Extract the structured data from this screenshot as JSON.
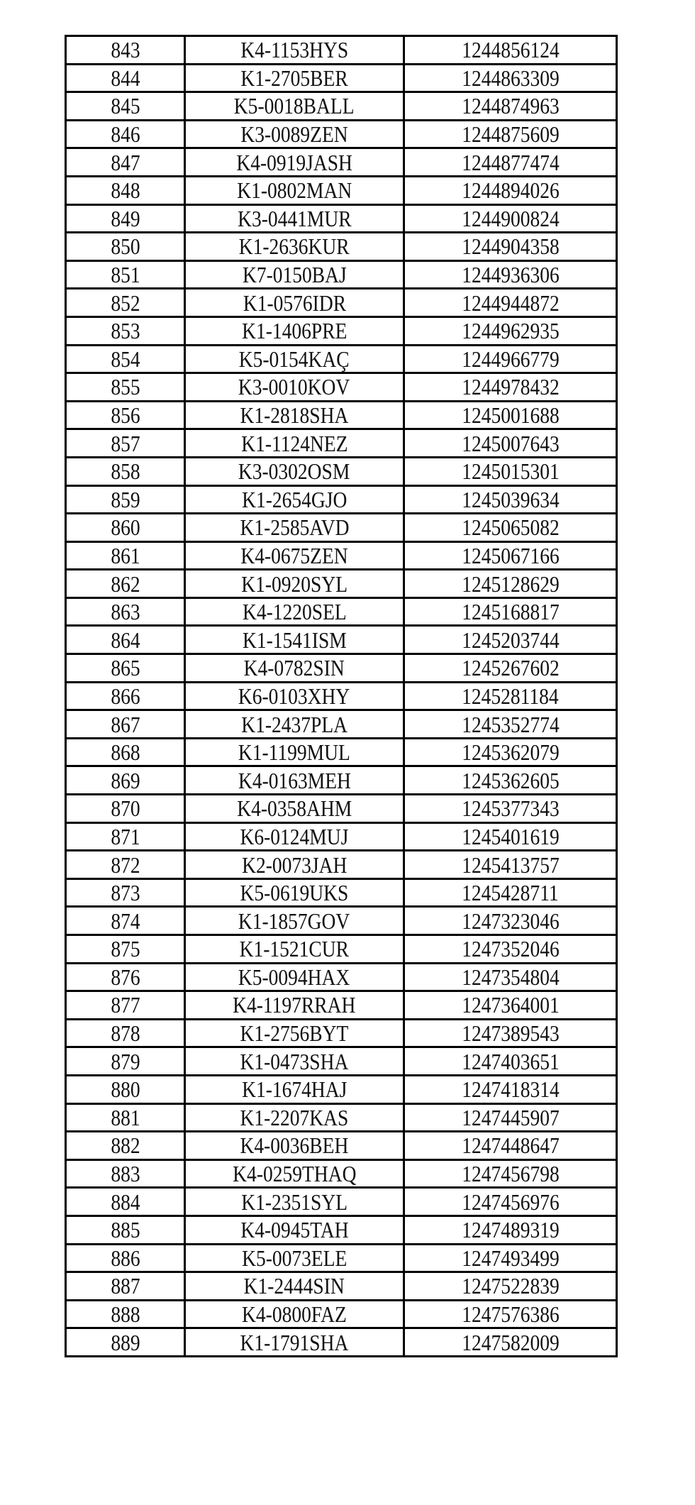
{
  "table": {
    "rows": [
      [
        "843",
        "K4-1153HYS",
        "1244856124"
      ],
      [
        "844",
        "K1-2705BER",
        "1244863309"
      ],
      [
        "845",
        "K5-0018BALL",
        "1244874963"
      ],
      [
        "846",
        "K3-0089ZEN",
        "1244875609"
      ],
      [
        "847",
        "K4-0919JASH",
        "1244877474"
      ],
      [
        "848",
        "K1-0802MAN",
        "1244894026"
      ],
      [
        "849",
        "K3-0441MUR",
        "1244900824"
      ],
      [
        "850",
        "K1-2636KUR",
        "1244904358"
      ],
      [
        "851",
        "K7-0150BAJ",
        "1244936306"
      ],
      [
        "852",
        "K1-0576IDR",
        "1244944872"
      ],
      [
        "853",
        "K1-1406PRE",
        "1244962935"
      ],
      [
        "854",
        "K5-0154KAÇ",
        "1244966779"
      ],
      [
        "855",
        "K3-0010KOV",
        "1244978432"
      ],
      [
        "856",
        "K1-2818SHA",
        "1245001688"
      ],
      [
        "857",
        "K1-1124NEZ",
        "1245007643"
      ],
      [
        "858",
        "K3-0302OSM",
        "1245015301"
      ],
      [
        "859",
        "K1-2654GJO",
        "1245039634"
      ],
      [
        "860",
        "K1-2585AVD",
        "1245065082"
      ],
      [
        "861",
        "K4-0675ZEN",
        "1245067166"
      ],
      [
        "862",
        "K1-0920SYL",
        "1245128629"
      ],
      [
        "863",
        "K4-1220SEL",
        "1245168817"
      ],
      [
        "864",
        "K1-1541ISM",
        "1245203744"
      ],
      [
        "865",
        "K4-0782SIN",
        "1245267602"
      ],
      [
        "866",
        "K6-0103XHY",
        "1245281184"
      ],
      [
        "867",
        "K1-2437PLA",
        "1245352774"
      ],
      [
        "868",
        "K1-1199MUL",
        "1245362079"
      ],
      [
        "869",
        "K4-0163MEH",
        "1245362605"
      ],
      [
        "870",
        "K4-0358AHM",
        "1245377343"
      ],
      [
        "871",
        "K6-0124MUJ",
        "1245401619"
      ],
      [
        "872",
        "K2-0073JAH",
        "1245413757"
      ],
      [
        "873",
        "K5-0619UKS",
        "1245428711"
      ],
      [
        "874",
        "K1-1857GOV",
        "1247323046"
      ],
      [
        "875",
        "K1-1521CUR",
        "1247352046"
      ],
      [
        "876",
        "K5-0094HAX",
        "1247354804"
      ],
      [
        "877",
        "K4-1197RRAH",
        "1247364001"
      ],
      [
        "878",
        "K1-2756BYT",
        "1247389543"
      ],
      [
        "879",
        "K1-0473SHA",
        "1247403651"
      ],
      [
        "880",
        "K1-1674HAJ",
        "1247418314"
      ],
      [
        "881",
        "K1-2207KAS",
        "1247445907"
      ],
      [
        "882",
        "K4-0036BEH",
        "1247448647"
      ],
      [
        "883",
        "K4-0259THAQ",
        "1247456798"
      ],
      [
        "884",
        "K1-2351SYL",
        "1247456976"
      ],
      [
        "885",
        "K4-0945TAH",
        "1247489319"
      ],
      [
        "886",
        "K5-0073ELE",
        "1247493499"
      ],
      [
        "887",
        "K1-2444SIN",
        "1247522839"
      ],
      [
        "888",
        "K4-0800FAZ",
        "1247576386"
      ],
      [
        "889",
        "K1-1791SHA",
        "1247582009"
      ]
    ]
  }
}
